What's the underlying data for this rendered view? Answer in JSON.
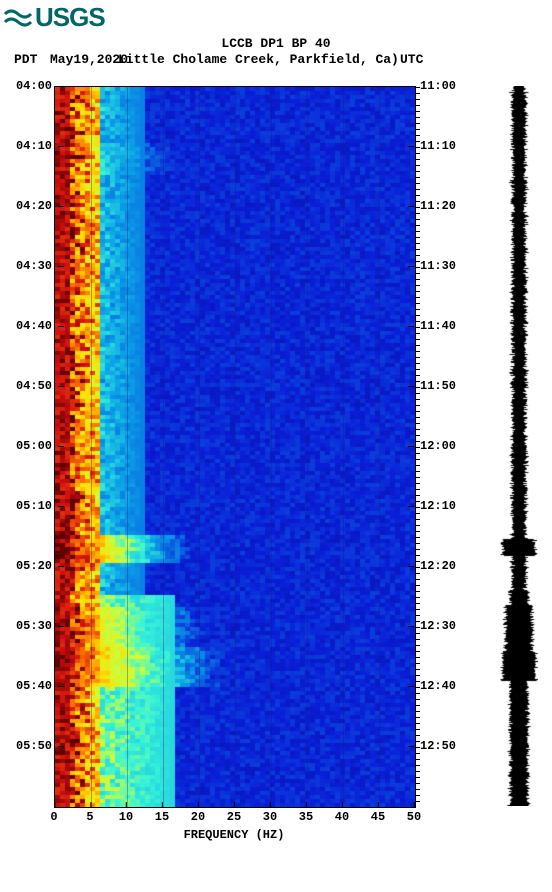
{
  "logo": {
    "text": "USGS",
    "color": "#006666"
  },
  "title": "LCCB DP1 BP 40",
  "subline": {
    "pdt": "PDT",
    "date": "May19,2020",
    "location": "Little Cholame Creek, Parkfield, Ca)",
    "utc": "UTC"
  },
  "xaxis": {
    "label": "FREQUENCY (HZ)",
    "min": 0,
    "max": 50,
    "ticks": [
      0,
      5,
      10,
      15,
      20,
      25,
      30,
      35,
      40,
      45,
      50
    ]
  },
  "yaxis_left": {
    "ticks": [
      "04:00",
      "04:10",
      "04:20",
      "04:30",
      "04:40",
      "04:50",
      "05:00",
      "05:10",
      "05:20",
      "05:30",
      "05:40",
      "05:50"
    ],
    "fractions": [
      0.0,
      0.0833,
      0.1667,
      0.25,
      0.3333,
      0.4167,
      0.5,
      0.5833,
      0.6667,
      0.75,
      0.8333,
      0.9167
    ]
  },
  "yaxis_right": {
    "ticks": [
      "11:00",
      "11:10",
      "11:20",
      "11:30",
      "11:40",
      "11:50",
      "12:00",
      "12:10",
      "12:20",
      "12:30",
      "12:40",
      "12:50"
    ],
    "fractions": [
      0.0,
      0.0833,
      0.1667,
      0.25,
      0.3333,
      0.4167,
      0.5,
      0.5833,
      0.6667,
      0.75,
      0.8333,
      0.9167
    ]
  },
  "spectrogram": {
    "nx": 72,
    "ny": 180,
    "low_freq_band_hz": 6,
    "mid_band_hz": 12,
    "background_color": "#0a1fd8",
    "colormap_stops": [
      {
        "v": 0.0,
        "c": "#08006b"
      },
      {
        "v": 0.15,
        "c": "#0a1fd8"
      },
      {
        "v": 0.35,
        "c": "#0aa0e8"
      },
      {
        "v": 0.5,
        "c": "#38f5d8"
      },
      {
        "v": 0.62,
        "c": "#c8ff40"
      },
      {
        "v": 0.75,
        "c": "#ffe000"
      },
      {
        "v": 0.85,
        "c": "#ff8000"
      },
      {
        "v": 0.95,
        "c": "#d01010"
      },
      {
        "v": 1.0,
        "c": "#600000"
      }
    ],
    "event_bands": [
      {
        "t": 0.095,
        "strength": 0.55,
        "width_hz": 18,
        "thick": 0.012
      },
      {
        "t": 0.64,
        "strength": 0.95,
        "width_hz": 20,
        "thick": 0.01
      },
      {
        "t": 0.664,
        "strength": 0.6,
        "width_hz": 14,
        "thick": 0.01
      },
      {
        "t": 0.76,
        "strength": 0.85,
        "width_hz": 22,
        "thick": 0.03
      },
      {
        "t": 0.805,
        "strength": 0.9,
        "width_hz": 25,
        "thick": 0.018
      },
      {
        "t": 0.79,
        "strength": 0.6,
        "width_hz": 16,
        "thick": 0.01
      }
    ],
    "high_activity_from": 0.7
  },
  "trace": {
    "color": "#000000",
    "base_amp": 0.45,
    "bursts": [
      {
        "t": 0.64,
        "amp": 0.95,
        "dur": 0.012
      },
      {
        "t": 0.76,
        "amp": 0.8,
        "dur": 0.04
      },
      {
        "t": 0.805,
        "amp": 0.98,
        "dur": 0.02
      }
    ]
  },
  "style": {
    "font": "Courier New",
    "text_color": "#000000",
    "grid_color": "rgba(30,30,120,0.35)"
  }
}
